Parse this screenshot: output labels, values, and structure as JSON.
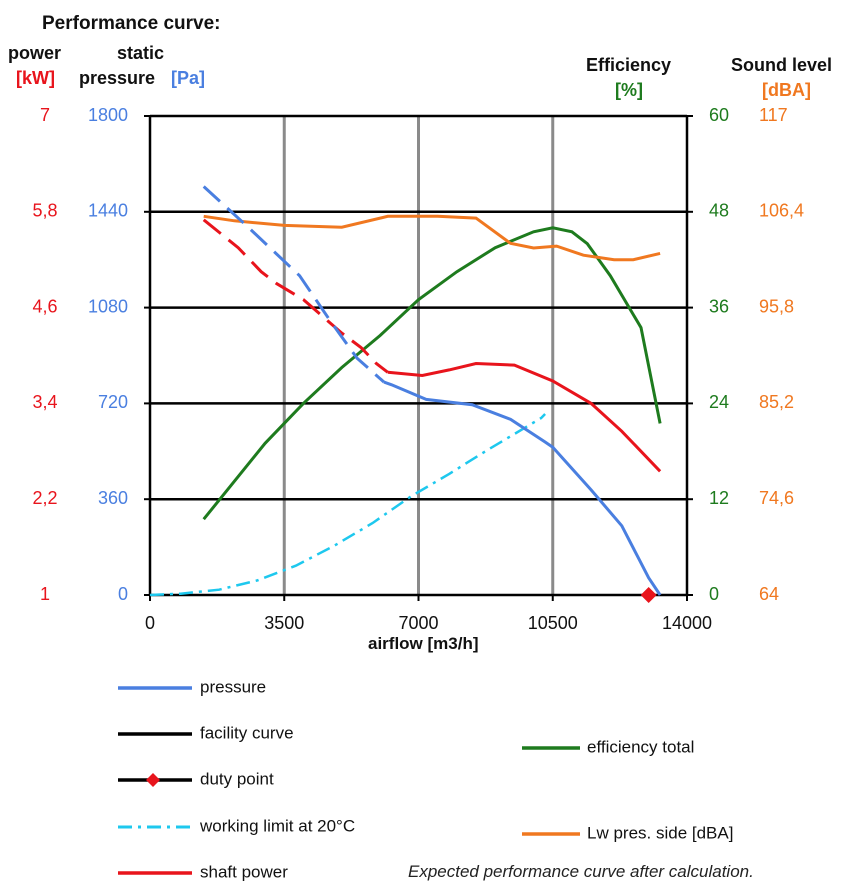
{
  "chart_data": {
    "type": "line",
    "title": "Performance curve:",
    "xlabel": "airflow [m3/h]",
    "x_ticks": [
      "0",
      "3500",
      "7000",
      "10500",
      "14000"
    ],
    "xlim": [
      0,
      14000
    ],
    "grid": true,
    "axes": {
      "power": {
        "label_line1": "power",
        "unit": "[kW]",
        "ticks": [
          "1",
          "2,2",
          "3,4",
          "4,6",
          "5,8",
          "7"
        ],
        "range": [
          1,
          7
        ],
        "color": "#e8141c"
      },
      "pressure": {
        "label_line1": "static",
        "label_line2": "pressure",
        "unit": "[Pa]",
        "ticks": [
          "0",
          "360",
          "720",
          "1080",
          "1440",
          "1800"
        ],
        "range": [
          0,
          1800
        ],
        "color": "#4a7fe0"
      },
      "efficiency": {
        "label_line1": "Efficiency",
        "unit": "[%]",
        "ticks": [
          "0",
          "12",
          "24",
          "36",
          "48",
          "60"
        ],
        "range": [
          0,
          60
        ],
        "color": "#1e7b1e"
      },
      "sound": {
        "label_line1": "Sound level",
        "unit": "[dBA]",
        "ticks": [
          "64",
          "74,6",
          "85,2",
          "95,8",
          "106,4",
          "117"
        ],
        "range": [
          64,
          117
        ],
        "color": "#f07820"
      }
    },
    "series": [
      {
        "name": "pressure",
        "axis": "pressure",
        "color": "#4a7fe0",
        "style": "dashed-then-solid",
        "dash_until_x": 6100,
        "points": [
          [
            1400,
            1535
          ],
          [
            2500,
            1390
          ],
          [
            3900,
            1200
          ],
          [
            4700,
            1030
          ],
          [
            5400,
            890
          ],
          [
            6100,
            800
          ],
          [
            6300,
            790
          ],
          [
            7200,
            735
          ],
          [
            8400,
            715
          ],
          [
            9400,
            660
          ],
          [
            10300,
            575
          ],
          [
            10500,
            555
          ],
          [
            11500,
            395
          ],
          [
            12300,
            260
          ],
          [
            13000,
            65
          ],
          [
            13300,
            0
          ]
        ]
      },
      {
        "name": "facility curve",
        "axis": "pressure",
        "color": "#000000",
        "points": []
      },
      {
        "name": "duty point",
        "axis": "pressure",
        "color": "#e8141c",
        "marker": "diamond",
        "points": [
          [
            13000,
            0
          ]
        ]
      },
      {
        "name": "working limit at 20°C",
        "axis": "pressure",
        "color": "#1ec8ee",
        "style": "dashdot",
        "points": [
          [
            0,
            0
          ],
          [
            800,
            5
          ],
          [
            1800,
            20
          ],
          [
            2800,
            55
          ],
          [
            3800,
            110
          ],
          [
            4800,
            185
          ],
          [
            5800,
            270
          ],
          [
            6800,
            370
          ],
          [
            7800,
            455
          ],
          [
            8800,
            545
          ],
          [
            9500,
            605
          ],
          [
            10200,
            665
          ],
          [
            10300,
            680
          ]
        ]
      },
      {
        "name": "shaft power",
        "axis": "power",
        "color": "#e8141c",
        "style": "dashed-then-solid",
        "dash_until_x": 6200,
        "points": [
          [
            1400,
            5.7
          ],
          [
            2300,
            5.35
          ],
          [
            2900,
            5.05
          ],
          [
            3300,
            4.9
          ],
          [
            4000,
            4.7
          ],
          [
            5000,
            4.28
          ],
          [
            5500,
            4.1
          ],
          [
            5900,
            3.9
          ],
          [
            6200,
            3.79
          ],
          [
            7100,
            3.75
          ],
          [
            7800,
            3.82
          ],
          [
            8500,
            3.9
          ],
          [
            9500,
            3.88
          ],
          [
            10500,
            3.68
          ],
          [
            11500,
            3.4
          ],
          [
            12300,
            3.05
          ],
          [
            13300,
            2.55
          ]
        ]
      },
      {
        "name": "efficiency total",
        "axis": "efficiency",
        "color": "#1e7b1e",
        "points": [
          [
            1400,
            9.5
          ],
          [
            3000,
            19.0
          ],
          [
            4000,
            24.0
          ],
          [
            5000,
            28.5
          ],
          [
            6000,
            32.5
          ],
          [
            7000,
            37.0
          ],
          [
            8000,
            40.5
          ],
          [
            9000,
            43.5
          ],
          [
            10000,
            45.5
          ],
          [
            10500,
            46.0
          ],
          [
            11000,
            45.5
          ],
          [
            11400,
            44.0
          ],
          [
            12000,
            40.0
          ],
          [
            12800,
            33.5
          ],
          [
            13300,
            21.5
          ]
        ]
      },
      {
        "name": "Lw pres. side [dBA]",
        "axis": "sound",
        "color": "#f07820",
        "points": [
          [
            1400,
            105.9
          ],
          [
            2200,
            105.4
          ],
          [
            3500,
            104.9
          ],
          [
            5000,
            104.7
          ],
          [
            6200,
            105.9
          ],
          [
            7500,
            105.9
          ],
          [
            8500,
            105.7
          ],
          [
            9400,
            102.9
          ],
          [
            10000,
            102.4
          ],
          [
            10600,
            102.6
          ],
          [
            11300,
            101.6
          ],
          [
            12100,
            101.1
          ],
          [
            12600,
            101.1
          ],
          [
            13300,
            101.8
          ]
        ]
      }
    ],
    "legend": [
      {
        "label": "pressure",
        "color": "#4a7fe0",
        "kind": "line"
      },
      {
        "label": "facility curve",
        "color": "#000000",
        "kind": "line"
      },
      {
        "label": "duty point",
        "color": "#000000",
        "kind": "diamond"
      },
      {
        "label": "working limit at 20°C",
        "color": "#1ec8ee",
        "kind": "dashdot"
      },
      {
        "label": "shaft power",
        "color": "#e8141c",
        "kind": "line"
      },
      {
        "label": "efficiency total",
        "color": "#1e7b1e",
        "kind": "line"
      },
      {
        "label": "Lw pres. side [dBA]",
        "color": "#f07820",
        "kind": "line"
      }
    ],
    "footnote": "Expected performance curve after calculation."
  }
}
